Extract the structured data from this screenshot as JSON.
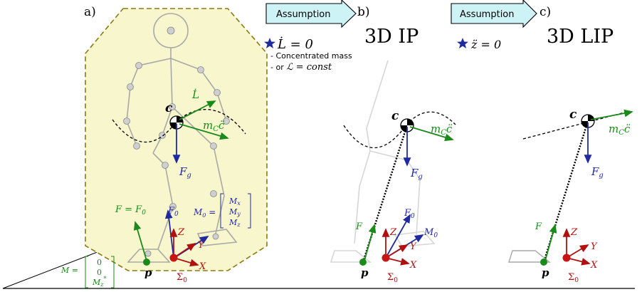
{
  "panels": [
    {
      "label": "a)"
    },
    {
      "label": "b)",
      "title": "3D IP"
    },
    {
      "label": "c)",
      "title": "3D LIP"
    }
  ],
  "arrows": [
    {
      "text": "Assumption"
    },
    {
      "text": "Assumption"
    }
  ],
  "assumption_b": {
    "condition": "L̇ = 0",
    "bullet1": "Concentrated mass",
    "bullet2_prefix": "or",
    "bullet2_math": "ℒ = const"
  },
  "assumption_c": {
    "condition": "z̈ = 0"
  },
  "labels": {
    "c": "c",
    "p": "p",
    "Fg": "F",
    "Fg_sub": "g",
    "mc": "m",
    "mc_sub": "C",
    "mc_tail": "c̈",
    "Ldot": "L̇",
    "F": "F",
    "F0": "F",
    "F0_sub": "0",
    "F_eq": "F = F",
    "F_eq_sub": "0",
    "M0": "M",
    "M0_sub": "0",
    "X": "X",
    "Y": "Y",
    "Z": "Z",
    "Sigma": "Σ",
    "Sigma_sub": "0",
    "M0_matrix": [
      "M",
      "M",
      "M"
    ],
    "M0_matrix_subs": [
      "x",
      "y",
      "z"
    ],
    "M_eq": "M =",
    "M_matrix": [
      "0",
      "0",
      "M"
    ],
    "M_matrix_last_sub": "z",
    "M_matrix_last_sup": "*"
  },
  "colors": {
    "green": "#1a8a1a",
    "blue": "#1f2aa0",
    "red": "#b01010",
    "region_fill": "#f8f6cc",
    "region_stroke": "#8c7a10",
    "arrow_fill": "#cef3f6",
    "robot": "#a8a8a8",
    "star": "#1f2aa0"
  }
}
